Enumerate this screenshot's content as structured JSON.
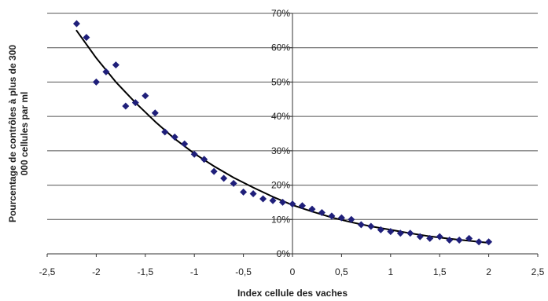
{
  "chart_data": {
    "type": "scatter",
    "title": "",
    "xlabel": "Index cellule des vaches",
    "ylabel_lines": [
      "Pourcentage de contrôles à plus de 300",
      "000 cellules par ml"
    ],
    "xlim": [
      -2.5,
      2.5
    ],
    "ylim": [
      0,
      70
    ],
    "x_ticks": [
      -2.5,
      -2,
      -1.5,
      -1,
      -0.5,
      0,
      0.5,
      1,
      1.5,
      2,
      2.5
    ],
    "x_tick_labels": [
      "-2,5",
      "-2",
      "-1,5",
      "-1",
      "-0,5",
      "0",
      "0,5",
      "1",
      "1,5",
      "2",
      "2,5"
    ],
    "y_ticks": [
      0,
      10,
      20,
      30,
      40,
      50,
      60,
      70
    ],
    "y_tick_labels": [
      "0%",
      "10%",
      "20%",
      "30%",
      "40%",
      "50%",
      "60%",
      "70%"
    ],
    "grid": "horizontal",
    "legend": "none",
    "colors": {
      "markers": "#1f1f7a",
      "trend": "#000000",
      "grid": "#555555",
      "axis": "#333333"
    },
    "series": [
      {
        "kind": "points",
        "x": [
          -2.2,
          -2.1,
          -2.0,
          -1.9,
          -1.8,
          -1.7,
          -1.6,
          -1.5,
          -1.4,
          -1.3,
          -1.2,
          -1.1,
          -1.0,
          -0.9,
          -0.8,
          -0.7,
          -0.6,
          -0.5,
          -0.4,
          -0.3,
          -0.2,
          -0.1,
          0.0,
          0.1,
          0.2,
          0.3,
          0.4,
          0.5,
          0.6,
          0.7,
          0.8,
          0.9,
          1.0,
          1.1,
          1.2,
          1.3,
          1.4,
          1.5,
          1.6,
          1.7,
          1.8,
          1.9,
          2.0
        ],
        "y": [
          67,
          63,
          50,
          53,
          55,
          43,
          44,
          46,
          41,
          35.5,
          34,
          32,
          29,
          27.5,
          24,
          22,
          20.5,
          18,
          17.5,
          16,
          15.5,
          15,
          14.5,
          14,
          13,
          12,
          11,
          10.5,
          10,
          8.5,
          8,
          7,
          6.5,
          6,
          6,
          5,
          4.5,
          5,
          4,
          4,
          4.5,
          3.5,
          3.5
        ]
      },
      {
        "kind": "trendline",
        "x": [
          -2.2,
          -2.0,
          -1.8,
          -1.6,
          -1.4,
          -1.2,
          -1.0,
          -0.8,
          -0.6,
          -0.4,
          -0.2,
          0.0,
          0.2,
          0.4,
          0.6,
          0.8,
          1.0,
          1.2,
          1.4,
          1.6,
          1.8,
          2.0
        ],
        "y": [
          65,
          57,
          50,
          44,
          38.5,
          33.5,
          29.2,
          25.5,
          22.2,
          19.3,
          16.6,
          14.2,
          12.3,
          10.6,
          9.2,
          8.0,
          7.0,
          6.0,
          5.1,
          4.4,
          3.8,
          3.2
        ]
      }
    ]
  }
}
